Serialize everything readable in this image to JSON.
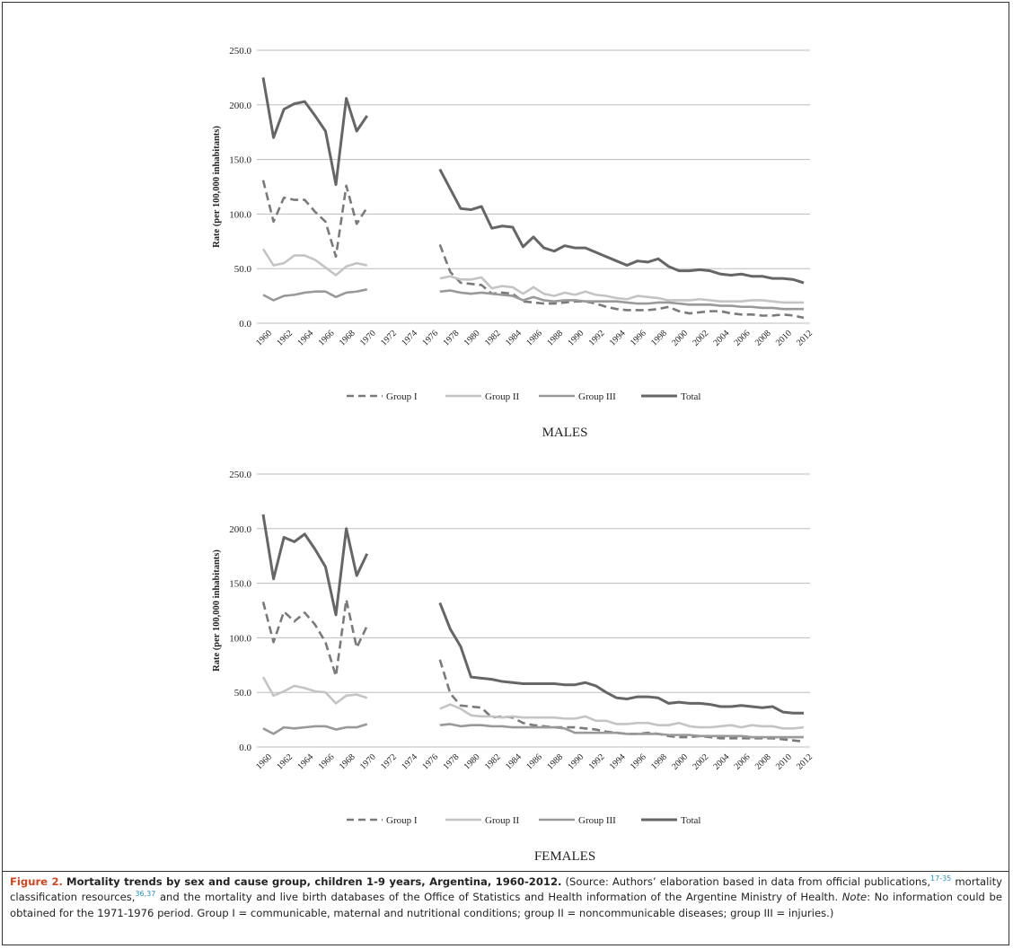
{
  "chart_data": [
    {
      "type": "line",
      "title": "MALES",
      "xlabel": "",
      "ylabel": "Rate (per 100,000 inhabitants)",
      "ylim": [
        0,
        250
      ],
      "yticks": [
        "0.0",
        "50.0",
        "100.0",
        "150.0",
        "200.0",
        "250.0"
      ],
      "xlim": [
        1960,
        2012
      ],
      "xticks": [
        "1960",
        "1962",
        "1964",
        "1966",
        "1968",
        "1970",
        "1972",
        "1974",
        "1976",
        "1978",
        "1980",
        "1982",
        "1984",
        "1986",
        "1988",
        "1990",
        "1992",
        "1994",
        "1996",
        "1998",
        "2000",
        "2002",
        "2004",
        "2006",
        "2008",
        "2010",
        "2012"
      ],
      "grid": "horizontal",
      "legend_position": "bottom",
      "series": [
        {
          "name": "Group I",
          "color": "#7a7a7a",
          "dash": true,
          "width": 2.6,
          "x": [
            1960,
            1961,
            1962,
            1963,
            1964,
            1965,
            1966,
            1967,
            1968,
            1969,
            1970,
            1977,
            1978,
            1979,
            1980,
            1981,
            1982,
            1983,
            1984,
            1985,
            1986,
            1987,
            1988,
            1989,
            1990,
            1991,
            1992,
            1993,
            1994,
            1995,
            1996,
            1997,
            1998,
            1999,
            2000,
            2001,
            2002,
            2003,
            2004,
            2005,
            2006,
            2007,
            2008,
            2009,
            2010,
            2011,
            2012
          ],
          "y": [
            131,
            93,
            115,
            113,
            113,
            102,
            93,
            61,
            126,
            91,
            106,
            72,
            47,
            37,
            36,
            35,
            27,
            28,
            27,
            20,
            19,
            18,
            18,
            19,
            20,
            20,
            18,
            15,
            13,
            12,
            12,
            12,
            13,
            15,
            11,
            9,
            10,
            11,
            11,
            9,
            8,
            8,
            7,
            7,
            8,
            7,
            5
          ]
        },
        {
          "name": "Group II",
          "color": "#c4c4c4",
          "dash": false,
          "width": 2.6,
          "x": [
            1960,
            1961,
            1962,
            1963,
            1964,
            1965,
            1966,
            1967,
            1968,
            1969,
            1970,
            1977,
            1978,
            1979,
            1980,
            1981,
            1982,
            1983,
            1984,
            1985,
            1986,
            1987,
            1988,
            1989,
            1990,
            1991,
            1992,
            1993,
            1994,
            1995,
            1996,
            1997,
            1998,
            1999,
            2000,
            2001,
            2002,
            2003,
            2004,
            2005,
            2006,
            2007,
            2008,
            2009,
            2010,
            2011,
            2012
          ],
          "y": [
            68,
            53,
            55,
            62,
            62,
            58,
            51,
            44,
            52,
            55,
            53,
            41,
            43,
            40,
            40,
            42,
            32,
            34,
            33,
            27,
            33,
            27,
            25,
            28,
            26,
            29,
            26,
            25,
            23,
            22,
            25,
            24,
            23,
            21,
            21,
            21,
            22,
            21,
            20,
            20,
            20,
            21,
            21,
            20,
            19,
            19,
            19
          ]
        },
        {
          "name": "Group III",
          "color": "#999999",
          "dash": false,
          "width": 2.6,
          "x": [
            1960,
            1961,
            1962,
            1963,
            1964,
            1965,
            1966,
            1967,
            1968,
            1969,
            1970,
            1977,
            1978,
            1979,
            1980,
            1981,
            1982,
            1983,
            1984,
            1985,
            1986,
            1987,
            1988,
            1989,
            1990,
            1991,
            1992,
            1993,
            1994,
            1995,
            1996,
            1997,
            1998,
            1999,
            2000,
            2001,
            2002,
            2003,
            2004,
            2005,
            2006,
            2007,
            2008,
            2009,
            2010,
            2011,
            2012
          ],
          "y": [
            26,
            21,
            25,
            26,
            28,
            29,
            29,
            24,
            28,
            29,
            31,
            29,
            30,
            28,
            27,
            28,
            27,
            26,
            25,
            21,
            24,
            21,
            20,
            21,
            21,
            20,
            20,
            20,
            20,
            19,
            18,
            18,
            19,
            19,
            18,
            17,
            17,
            17,
            16,
            16,
            15,
            15,
            14,
            14,
            13,
            13,
            13
          ]
        },
        {
          "name": "Total",
          "color": "#666666",
          "dash": false,
          "width": 3,
          "x": [
            1960,
            1961,
            1962,
            1963,
            1964,
            1965,
            1966,
            1967,
            1968,
            1969,
            1970,
            1977,
            1978,
            1979,
            1980,
            1981,
            1982,
            1983,
            1984,
            1985,
            1986,
            1987,
            1988,
            1989,
            1990,
            1991,
            1992,
            1993,
            1994,
            1995,
            1996,
            1997,
            1998,
            1999,
            2000,
            2001,
            2002,
            2003,
            2004,
            2005,
            2006,
            2007,
            2008,
            2009,
            2010,
            2011,
            2012
          ],
          "y": [
            225,
            170,
            196,
            201,
            203,
            190,
            176,
            127,
            206,
            176,
            190,
            141,
            123,
            105,
            104,
            107,
            87,
            89,
            88,
            70,
            79,
            69,
            66,
            71,
            69,
            69,
            65,
            61,
            57,
            53,
            57,
            56,
            59,
            52,
            48,
            48,
            49,
            48,
            45,
            44,
            45,
            43,
            43,
            41,
            41,
            40,
            37
          ]
        }
      ]
    },
    {
      "type": "line",
      "title": "FEMALES",
      "xlabel": "",
      "ylabel": "Rate (per 100,000 inhabitants)",
      "ylim": [
        0,
        250
      ],
      "yticks": [
        "0.0",
        "50.0",
        "100.0",
        "150.0",
        "200.0",
        "250.0"
      ],
      "xlim": [
        1960,
        2012
      ],
      "xticks": [
        "1960",
        "1962",
        "1964",
        "1966",
        "1968",
        "1970",
        "1972",
        "1974",
        "1976",
        "1978",
        "1980",
        "1982",
        "1984",
        "1986",
        "1988",
        "1990",
        "1992",
        "1994",
        "1996",
        "1998",
        "2000",
        "2002",
        "2004",
        "2006",
        "2008",
        "2010",
        "2012"
      ],
      "grid": "horizontal",
      "legend_position": "bottom",
      "series": [
        {
          "name": "Group I",
          "color": "#7a7a7a",
          "dash": true,
          "width": 2.6,
          "x": [
            1960,
            1961,
            1962,
            1963,
            1964,
            1965,
            1966,
            1967,
            1968,
            1969,
            1970,
            1977,
            1978,
            1979,
            1980,
            1981,
            1982,
            1983,
            1984,
            1985,
            1986,
            1987,
            1988,
            1989,
            1990,
            1991,
            1992,
            1993,
            1994,
            1995,
            1996,
            1997,
            1998,
            1999,
            2000,
            2001,
            2002,
            2003,
            2004,
            2005,
            2006,
            2007,
            2008,
            2009,
            2010,
            2011,
            2012
          ],
          "y": [
            133,
            96,
            124,
            115,
            123,
            112,
            96,
            65,
            135,
            91,
            111,
            80,
            49,
            38,
            37,
            36,
            27,
            28,
            27,
            22,
            20,
            19,
            18,
            18,
            18,
            17,
            16,
            14,
            13,
            12,
            12,
            13,
            12,
            10,
            9,
            9,
            10,
            9,
            8,
            8,
            8,
            8,
            8,
            8,
            7,
            6,
            5
          ]
        },
        {
          "name": "Group II",
          "color": "#c4c4c4",
          "dash": false,
          "width": 2.6,
          "x": [
            1960,
            1961,
            1962,
            1963,
            1964,
            1965,
            1966,
            1967,
            1968,
            1969,
            1970,
            1977,
            1978,
            1979,
            1980,
            1981,
            1982,
            1983,
            1984,
            1985,
            1986,
            1987,
            1988,
            1989,
            1990,
            1991,
            1992,
            1993,
            1994,
            1995,
            1996,
            1997,
            1998,
            1999,
            2000,
            2001,
            2002,
            2003,
            2004,
            2005,
            2006,
            2007,
            2008,
            2009,
            2010,
            2011,
            2012
          ],
          "y": [
            64,
            47,
            51,
            56,
            54,
            51,
            50,
            40,
            47,
            48,
            45,
            35,
            39,
            35,
            29,
            28,
            28,
            27,
            28,
            27,
            27,
            27,
            27,
            26,
            26,
            28,
            24,
            24,
            21,
            21,
            22,
            22,
            20,
            20,
            22,
            19,
            18,
            18,
            19,
            20,
            18,
            20,
            19,
            19,
            17,
            17,
            18
          ]
        },
        {
          "name": "Group III",
          "color": "#999999",
          "dash": false,
          "width": 2.6,
          "x": [
            1960,
            1961,
            1962,
            1963,
            1964,
            1965,
            1966,
            1967,
            1968,
            1969,
            1970,
            1977,
            1978,
            1979,
            1980,
            1981,
            1982,
            1983,
            1984,
            1985,
            1986,
            1987,
            1988,
            1989,
            1990,
            1991,
            1992,
            1993,
            1994,
            1995,
            1996,
            1997,
            1998,
            1999,
            2000,
            2001,
            2002,
            2003,
            2004,
            2005,
            2006,
            2007,
            2008,
            2009,
            2010,
            2011,
            2012
          ],
          "y": [
            17,
            12,
            18,
            17,
            18,
            19,
            19,
            16,
            18,
            18,
            21,
            20,
            21,
            19,
            20,
            20,
            19,
            19,
            18,
            18,
            18,
            18,
            18,
            17,
            13,
            13,
            13,
            13,
            13,
            12,
            12,
            12,
            12,
            11,
            11,
            11,
            10,
            10,
            10,
            10,
            10,
            9,
            9,
            9,
            9,
            9,
            9
          ]
        },
        {
          "name": "Total",
          "color": "#666666",
          "dash": false,
          "width": 3,
          "x": [
            1960,
            1961,
            1962,
            1963,
            1964,
            1965,
            1966,
            1967,
            1968,
            1969,
            1970,
            1977,
            1978,
            1979,
            1980,
            1981,
            1982,
            1983,
            1984,
            1985,
            1986,
            1987,
            1988,
            1989,
            1990,
            1991,
            1992,
            1993,
            1994,
            1995,
            1996,
            1997,
            1998,
            1999,
            2000,
            2001,
            2002,
            2003,
            2004,
            2005,
            2006,
            2007,
            2008,
            2009,
            2010,
            2011,
            2012
          ],
          "y": [
            213,
            154,
            192,
            188,
            195,
            181,
            165,
            121,
            200,
            157,
            177,
            132,
            108,
            92,
            64,
            63,
            62,
            60,
            59,
            58,
            58,
            58,
            58,
            57,
            57,
            59,
            56,
            50,
            45,
            44,
            46,
            46,
            45,
            40,
            41,
            40,
            40,
            39,
            37,
            37,
            38,
            37,
            36,
            37,
            32,
            31,
            31
          ]
        }
      ]
    }
  ],
  "caption": {
    "label": "Figure 2.",
    "title": "Mortality trends by sex and cause group, children 1-9 years, Argentina, 1960-2012.",
    "part1": "(Source: Authors’ elaboration based in data from official publications,",
    "ref1": "17-35",
    "part2": "mortality classification resources,",
    "ref2": "36,37",
    "part3": "and the mortality and live birth databases of the Office of Statistics and Health information of the Argentine Ministry of Health.",
    "note_label": "Note",
    "part4": ": No information could be obtained for the 1971-1976 period. Group I = communicable, maternal and nutritional conditions; group II = noncommunicable diseases; group III = injuries.)"
  }
}
